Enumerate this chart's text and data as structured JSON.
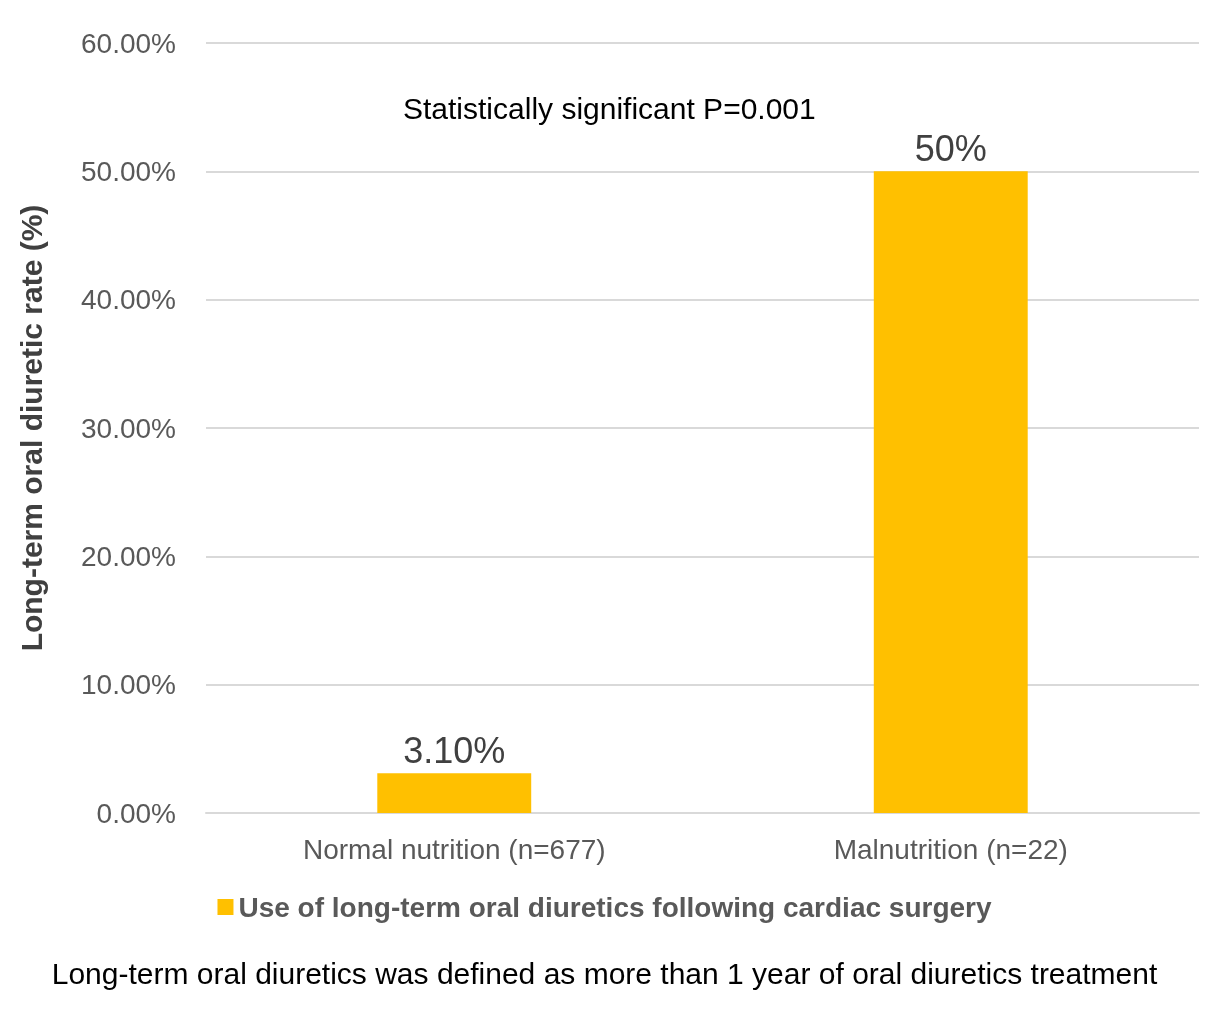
{
  "chart_data": {
    "type": "bar",
    "ylabel": "Long-term oral diuretic rate (%)",
    "categories": [
      "Normal nutrition (n=677)",
      "Malnutrition (n=22)"
    ],
    "series": [
      {
        "name": "Use of long-term oral diuretics following cardiac surgery",
        "color": "#ffc000",
        "values": [
          3.1,
          50
        ],
        "value_labels": [
          "3.10%",
          "50%"
        ]
      }
    ],
    "ylim": [
      0,
      60
    ],
    "yticks": [
      {
        "value": 0,
        "label": "0.00%"
      },
      {
        "value": 10,
        "label": "10.00%"
      },
      {
        "value": 20,
        "label": "20.00%"
      },
      {
        "value": 30,
        "label": "30.00%"
      },
      {
        "value": 40,
        "label": "40.00%"
      },
      {
        "value": 50,
        "label": "50.00%"
      },
      {
        "value": 60,
        "label": "60.00%"
      }
    ],
    "grid": "y",
    "legend": "bottom",
    "annotations": [
      "Statistically significant P=0.001",
      "Long-term oral diuretics was defined as more than 1 year of oral diuretics treatment"
    ]
  }
}
